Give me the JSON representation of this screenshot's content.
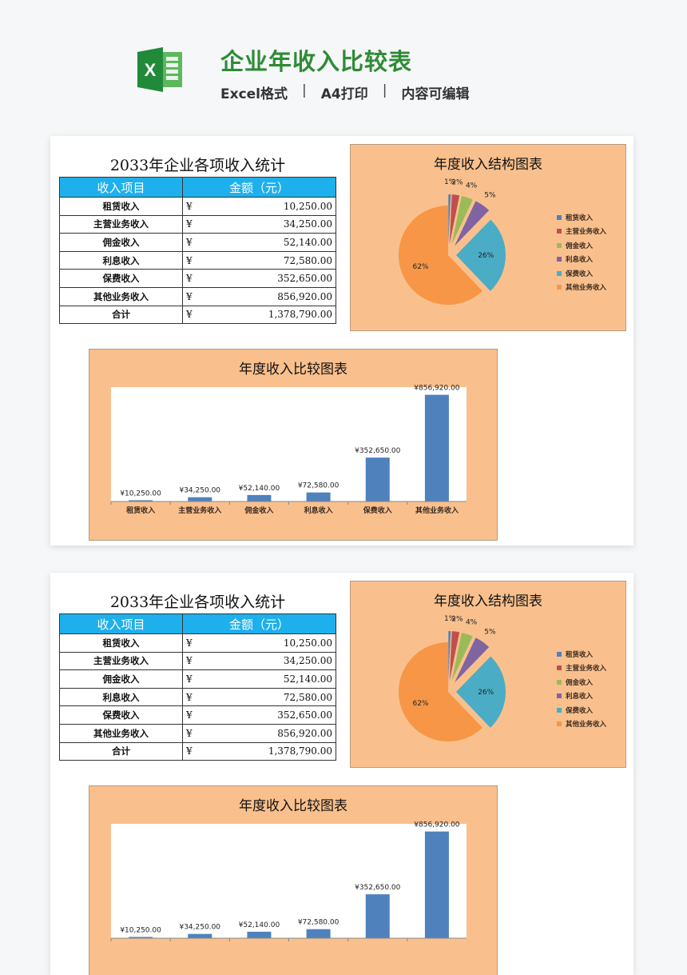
{
  "header": {
    "title": "企业年收入比较表",
    "tags": [
      "Excel格式",
      "A4打印",
      "内容可编辑"
    ],
    "separator": "|",
    "icon": "excel-icon",
    "brand_color": "#2e8b35"
  },
  "sheet": {
    "table_title": "2033年企业各项收入统计",
    "columns": [
      "收入项目",
      "金额（元）"
    ],
    "currency_symbol": "¥",
    "rows": [
      {
        "name": "租赁收入",
        "amount": "10,250.00"
      },
      {
        "name": "主营业务收入",
        "amount": "34,250.00"
      },
      {
        "name": "佣金收入",
        "amount": "52,140.00"
      },
      {
        "name": "利息收入",
        "amount": "72,580.00"
      },
      {
        "name": "保费收入",
        "amount": "352,650.00"
      },
      {
        "name": "其他业务收入",
        "amount": "856,920.00"
      },
      {
        "name": "合计",
        "amount": "1,378,790.00"
      }
    ],
    "header_color": "#1eb0ec",
    "chart_bg": "#f9c08d"
  },
  "chart_data": [
    {
      "type": "pie",
      "title": "年度收入结构图表",
      "categories": [
        "租赁收入",
        "主营业务收入",
        "佣金收入",
        "利息收入",
        "保费收入",
        "其他业务收入"
      ],
      "values": [
        10250,
        34250,
        52140,
        72580,
        352650,
        856920
      ],
      "labels": [
        "1%",
        "2%",
        "4%",
        "5%",
        "26%",
        "62%"
      ],
      "colors": [
        "#4f81bd",
        "#c0504d",
        "#9bbb59",
        "#8064a2",
        "#4bacc6",
        "#f79646"
      ],
      "legend_position": "right",
      "exploded": true
    },
    {
      "type": "bar",
      "title": "年度收入比较图表",
      "categories": [
        "租赁收入",
        "主营业务收入",
        "佣金收入",
        "利息收入",
        "保费收入",
        "其他业务收入"
      ],
      "values": [
        10250,
        34250,
        52140,
        72580,
        352650,
        856920
      ],
      "data_labels": [
        "¥10,250.00",
        "¥34,250.00",
        "¥52,140.00",
        "¥72,580.00",
        "¥352,650.00",
        "¥856,920.00"
      ],
      "color": "#4f81bd",
      "xlabel": "",
      "ylabel": "",
      "ylim": [
        0,
        900000
      ],
      "grid": false
    }
  ]
}
